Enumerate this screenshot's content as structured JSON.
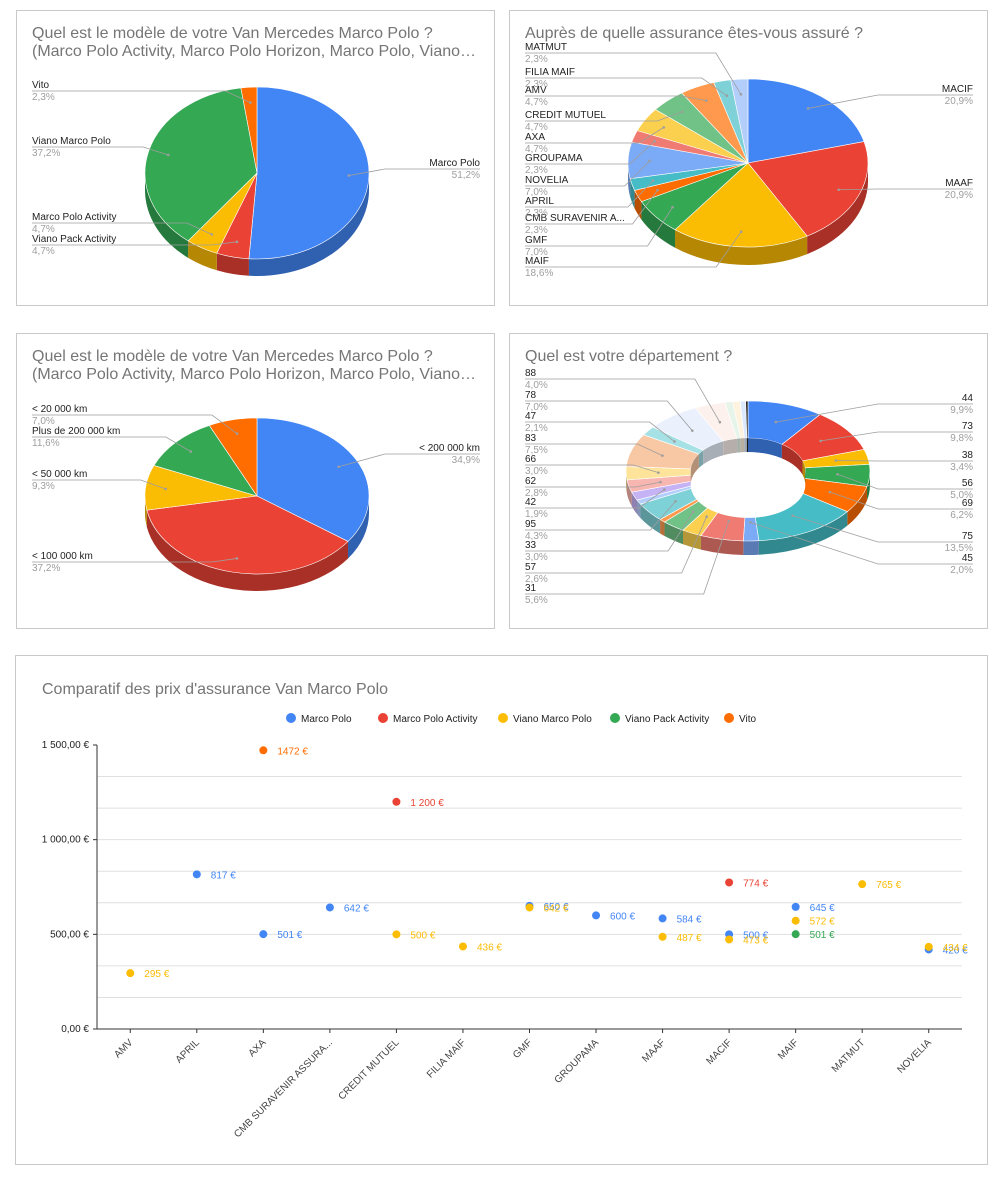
{
  "charts": [
    {
      "type": "pie",
      "title_line1": "Quel est le modèle de votre Van Mercedes Marco Polo ?",
      "title_line2": "(Marco Polo Activity, Marco Polo Horizon, Marco Polo, Viano…",
      "slices": [
        {
          "label": "Marco Polo",
          "pct": "51,2%",
          "value": 51.2,
          "color": "#4285f4"
        },
        {
          "label": "Viano Pack Activity",
          "pct": "4,7%",
          "value": 4.7,
          "color": "#ea4335"
        },
        {
          "label": "Marco Polo Activity",
          "pct": "4,7%",
          "value": 4.7,
          "color": "#fbbc04"
        },
        {
          "label": "Viano Marco Polo",
          "pct": "37,2%",
          "value": 37.2,
          "color": "#34a853"
        },
        {
          "label": "Vito",
          "pct": "2,3%",
          "value": 2.3,
          "color": "#ff6d01"
        }
      ]
    },
    {
      "type": "pie",
      "title_line1": "Auprès de quelle assurance êtes-vous assuré ?",
      "slices": [
        {
          "label": "MACIF",
          "pct": "20,9%",
          "value": 20.9,
          "color": "#4285f4"
        },
        {
          "label": "MAAF",
          "pct": "20,9%",
          "value": 20.9,
          "color": "#ea4335"
        },
        {
          "label": "MAIF",
          "pct": "18,6%",
          "value": 18.6,
          "color": "#fbbc04"
        },
        {
          "label": "GMF",
          "pct": "7,0%",
          "value": 7.0,
          "color": "#34a853"
        },
        {
          "label": "CMB SURAVENIR A...",
          "pct": "2,3%",
          "value": 2.3,
          "color": "#ff6d01"
        },
        {
          "label": "APRIL",
          "pct": "2,3%",
          "value": 2.3,
          "color": "#46bdc6"
        },
        {
          "label": "NOVELIA",
          "pct": "7,0%",
          "value": 7.0,
          "color": "#7baaf7"
        },
        {
          "label": "GROUPAMA",
          "pct": "2,3%",
          "value": 2.3,
          "color": "#f07b72"
        },
        {
          "label": "AXA",
          "pct": "4,7%",
          "value": 4.7,
          "color": "#fcd04f"
        },
        {
          "label": "CREDIT MUTUEL",
          "pct": "4,7%",
          "value": 4.7,
          "color": "#71c287"
        },
        {
          "label": "AMV",
          "pct": "4,7%",
          "value": 4.7,
          "color": "#ff994d"
        },
        {
          "label": "FILIA MAIF",
          "pct": "2,3%",
          "value": 2.3,
          "color": "#7ed1d7"
        },
        {
          "label": "MATMUT",
          "pct": "2,3%",
          "value": 2.3,
          "color": "#b3cefb"
        }
      ]
    },
    {
      "type": "pie",
      "title_line1": "Quel est le modèle de votre Van Mercedes Marco Polo ?",
      "title_line2": "(Marco Polo Activity, Marco Polo Horizon, Marco Polo, Viano…",
      "slices": [
        {
          "label": "< 200 000 km",
          "pct": "34,9%",
          "value": 34.9,
          "color": "#4285f4"
        },
        {
          "label": "< 100 000 km",
          "pct": "37,2%",
          "value": 37.2,
          "color": "#ea4335"
        },
        {
          "label": "< 50 000 km",
          "pct": "9,3%",
          "value": 9.3,
          "color": "#fbbc04"
        },
        {
          "label": "Plus de 200 000 km",
          "pct": "11,6%",
          "value": 11.6,
          "color": "#34a853"
        },
        {
          "label": "< 20 000 km",
          "pct": "7,0%",
          "value": 7.0,
          "color": "#ff6d01"
        }
      ]
    },
    {
      "type": "donut",
      "title_line1": "Quel est votre département ?",
      "slices": [
        {
          "label": "44",
          "pct": "9,9%",
          "value": 9.9,
          "color": "#4285f4"
        },
        {
          "label": "73",
          "pct": "9,8%",
          "value": 9.8,
          "color": "#ea4335"
        },
        {
          "label": "38",
          "pct": "3,4%",
          "value": 3.4,
          "color": "#fbbc04"
        },
        {
          "label": "56",
          "pct": "5,0%",
          "value": 5.0,
          "color": "#34a853"
        },
        {
          "label": "69",
          "pct": "6,2%",
          "value": 6.2,
          "color": "#ff6d01"
        },
        {
          "label": "75",
          "pct": "13,5%",
          "value": 13.5,
          "color": "#46bdc6"
        },
        {
          "label": "45",
          "pct": "2,0%",
          "value": 2.0,
          "color": "#7baaf7"
        },
        {
          "label": "31",
          "pct": "5,6%",
          "value": 5.6,
          "color": "#f07b72"
        },
        {
          "label": "57",
          "pct": "2,6%",
          "value": 2.6,
          "color": "#fcd04f"
        },
        {
          "label": "33",
          "pct": "3,0%",
          "value": 3.0,
          "color": "#71c287"
        },
        {
          "label": "",
          "pct": "",
          "value": 0.8,
          "color": "#ff994d"
        },
        {
          "label": "95",
          "pct": "4,3%",
          "value": 4.3,
          "color": "#7ed1d7"
        },
        {
          "label": "",
          "pct": "",
          "value": 1.0,
          "color": "#b3cefb"
        },
        {
          "label": "42",
          "pct": "1,9%",
          "value": 1.9,
          "color": "#c5b3f6"
        },
        {
          "label": "62",
          "pct": "2,8%",
          "value": 2.8,
          "color": "#f7b6b0"
        },
        {
          "label": "66",
          "pct": "3,0%",
          "value": 3.0,
          "color": "#fde49a"
        },
        {
          "label": "83",
          "pct": "7,5%",
          "value": 7.5,
          "color": "#f8c8a4"
        },
        {
          "label": "47",
          "pct": "2,1%",
          "value": 2.1,
          "color": "#a6e1e5"
        },
        {
          "label": "78",
          "pct": "7,0%",
          "value": 7.0,
          "color": "#eaf1fd"
        },
        {
          "label": "88",
          "pct": "4,0%",
          "value": 4.0,
          "color": "#fdf1ee"
        },
        {
          "label": "",
          "pct": "",
          "value": 1.0,
          "color": "#e6f4ea"
        },
        {
          "label": "",
          "pct": "",
          "value": 1.0,
          "color": "#fff3e0"
        },
        {
          "label": "",
          "pct": "",
          "value": 0.7,
          "color": "#dbe8fd"
        },
        {
          "label": "",
          "pct": "",
          "value": 0.3,
          "color": "#222222"
        }
      ]
    }
  ],
  "chart_data": {
    "type": "scatter",
    "title": "Comparatif des prix d'assurance Van Marco Polo",
    "legend_position": "top",
    "grid": true,
    "ylim": [
      0,
      1500
    ],
    "y_ticks": [
      "0,00 €",
      "500,00 €",
      "1 000,00 €",
      "1 500,00 €"
    ],
    "categories": [
      "AMV",
      "APRIL",
      "AXA",
      "CMB SURAVENIR ASSURA...",
      "CREDIT MUTUEL",
      "FILIA MAIF",
      "GMF",
      "GROUPAMA",
      "MAAF",
      "MACIF",
      "MAIF",
      "MATMUT",
      "NOVELIA"
    ],
    "series": [
      {
        "name": "Marco Polo",
        "color": "#4285f4",
        "points": [
          {
            "x": "APRIL",
            "y": 817,
            "label": "817 €"
          },
          {
            "x": "AXA",
            "y": 501,
            "label": "501 €"
          },
          {
            "x": "CMB SURAVENIR ASSURA...",
            "y": 642,
            "label": "642 €"
          },
          {
            "x": "GMF",
            "y": 650,
            "label": "650 €"
          },
          {
            "x": "GROUPAMA",
            "y": 600,
            "label": "600 €"
          },
          {
            "x": "MAAF",
            "y": 584,
            "label": "584 €"
          },
          {
            "x": "MACIF",
            "y": 500,
            "label": "500 €"
          },
          {
            "x": "MAIF",
            "y": 645,
            "label": "645 €"
          },
          {
            "x": "NOVELIA",
            "y": 420,
            "label": "420 €"
          }
        ]
      },
      {
        "name": "Marco Polo Activity",
        "color": "#ea4335",
        "points": [
          {
            "x": "CREDIT MUTUEL",
            "y": 1200,
            "label": "1 200 €"
          },
          {
            "x": "MACIF",
            "y": 774,
            "label": "774 €"
          }
        ]
      },
      {
        "name": "Viano Marco Polo",
        "color": "#fbbc04",
        "points": [
          {
            "x": "AMV",
            "y": 295,
            "label": "295 €"
          },
          {
            "x": "CREDIT MUTUEL",
            "y": 500,
            "label": "500 €"
          },
          {
            "x": "FILIA MAIF",
            "y": 436,
            "label": "436 €"
          },
          {
            "x": "GMF",
            "y": 642,
            "label": "642 €"
          },
          {
            "x": "MAAF",
            "y": 487,
            "label": "487 €"
          },
          {
            "x": "MACIF",
            "y": 473,
            "label": "473 €"
          },
          {
            "x": "MAIF",
            "y": 572,
            "label": "572 €"
          },
          {
            "x": "MATMUT",
            "y": 765,
            "label": "765 €"
          },
          {
            "x": "NOVELIA",
            "y": 434,
            "label": "434 €"
          }
        ]
      },
      {
        "name": "Viano Pack Activity",
        "color": "#34a853",
        "points": [
          {
            "x": "MAIF",
            "y": 501,
            "label": "501 €"
          }
        ]
      },
      {
        "name": "Vito",
        "color": "#ff6d01",
        "points": [
          {
            "x": "AXA",
            "y": 1472,
            "label": "1472 €"
          }
        ]
      }
    ]
  }
}
